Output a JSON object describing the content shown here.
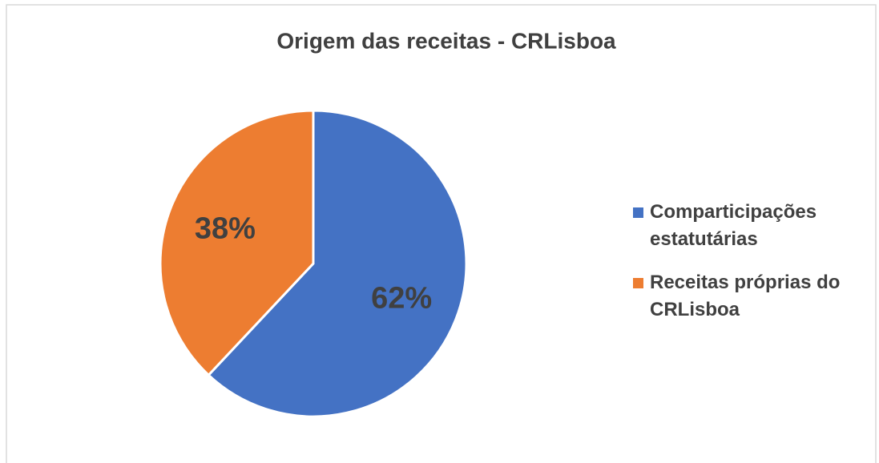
{
  "chart_data": {
    "type": "pie",
    "title": "Origem das receitas - CRLisboa",
    "categories": [
      "Comparticipações estatutárias",
      "Receitas próprias do CRLisboa"
    ],
    "values": [
      62,
      38
    ],
    "value_labels": [
      "62%",
      "38%"
    ],
    "colors": [
      "#4472c4",
      "#ed7d31"
    ],
    "legend": "right"
  }
}
